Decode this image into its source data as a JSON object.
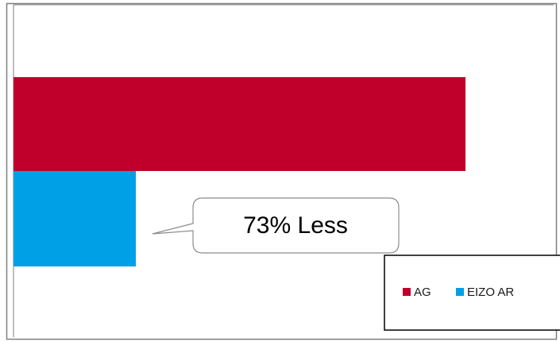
{
  "chart_data": {
    "type": "bar",
    "orientation": "horizontal",
    "axis_max": 100,
    "series": [
      {
        "name": "AG",
        "value": 100,
        "color": "#c0002b"
      },
      {
        "name": "EIZO AR",
        "value": 27,
        "color": "#00a0e6"
      }
    ],
    "annotation": "73% Less",
    "legend_position": "bottom-right",
    "grid": false
  }
}
